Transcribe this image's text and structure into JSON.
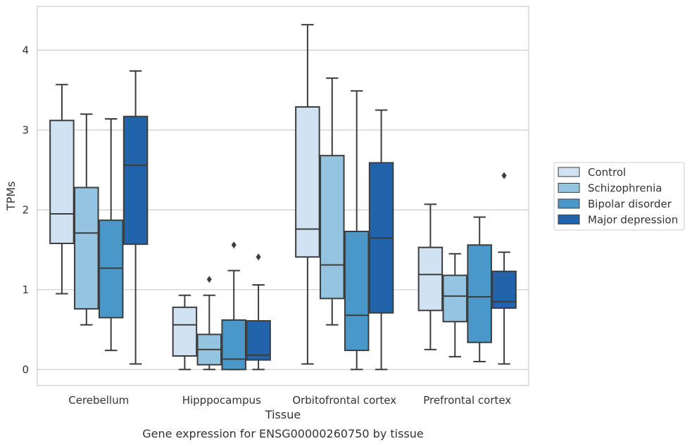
{
  "chart_data": {
    "type": "box",
    "xlabel": "Tissue",
    "ylabel": "TPMs",
    "caption": "Gene expression for ENSG00000260750 by tissue",
    "ylim": [
      -0.2,
      4.55
    ],
    "yticks": [
      0,
      1,
      2,
      3,
      4
    ],
    "grid": "horizontal",
    "legend_placement": "right",
    "categories": [
      "Cerebellum",
      "Hipppocampus",
      "Orbitofrontal cortex",
      "Prefrontal cortex"
    ],
    "series": [
      {
        "name": "Control",
        "color": "#d0e1f2",
        "boxes": [
          {
            "whislo": 0.95,
            "q1": 1.58,
            "med": 1.95,
            "q3": 3.12,
            "whishi": 3.57,
            "fliers": []
          },
          {
            "whislo": 0.0,
            "q1": 0.17,
            "med": 0.56,
            "q3": 0.78,
            "whishi": 0.93,
            "fliers": []
          },
          {
            "whislo": 0.07,
            "q1": 1.41,
            "med": 1.76,
            "q3": 3.29,
            "whishi": 4.32,
            "fliers": []
          },
          {
            "whislo": 0.25,
            "q1": 0.74,
            "med": 1.19,
            "q3": 1.53,
            "whishi": 2.07,
            "fliers": []
          }
        ]
      },
      {
        "name": "Schizophrenia",
        "color": "#94c4df",
        "boxes": [
          {
            "whislo": 0.56,
            "q1": 0.76,
            "med": 1.71,
            "q3": 2.28,
            "whishi": 3.2,
            "fliers": []
          },
          {
            "whislo": 0.0,
            "q1": 0.06,
            "med": 0.25,
            "q3": 0.44,
            "whishi": 0.93,
            "fliers": [
              1.13
            ]
          },
          {
            "whislo": 0.56,
            "q1": 0.89,
            "med": 1.31,
            "q3": 2.68,
            "whishi": 3.65,
            "fliers": []
          },
          {
            "whislo": 0.16,
            "q1": 0.6,
            "med": 0.92,
            "q3": 1.18,
            "whishi": 1.45,
            "fliers": []
          }
        ]
      },
      {
        "name": "Bipolar disorder",
        "color": "#4a98c9",
        "boxes": [
          {
            "whislo": 0.24,
            "q1": 0.65,
            "med": 1.27,
            "q3": 1.87,
            "whishi": 3.14,
            "fliers": []
          },
          {
            "whislo": 0.0,
            "q1": 0.0,
            "med": 0.13,
            "q3": 0.62,
            "whishi": 1.24,
            "fliers": [
              1.56
            ]
          },
          {
            "whislo": 0.0,
            "q1": 0.24,
            "med": 0.68,
            "q3": 1.73,
            "whishi": 3.49,
            "fliers": []
          },
          {
            "whislo": 0.1,
            "q1": 0.34,
            "med": 0.91,
            "q3": 1.56,
            "whishi": 1.91,
            "fliers": []
          }
        ]
      },
      {
        "name": "Major depression",
        "color": "#2164ab",
        "boxes": [
          {
            "whislo": 0.07,
            "q1": 1.57,
            "med": 2.56,
            "q3": 3.17,
            "whishi": 3.74,
            "fliers": []
          },
          {
            "whislo": 0.0,
            "q1": 0.12,
            "med": 0.18,
            "q3": 0.61,
            "whishi": 1.06,
            "fliers": [
              1.41
            ]
          },
          {
            "whislo": 0.0,
            "q1": 0.71,
            "med": 1.65,
            "q3": 2.59,
            "whishi": 3.25,
            "fliers": []
          },
          {
            "whislo": 0.07,
            "q1": 0.77,
            "med": 0.85,
            "q3": 1.23,
            "whishi": 1.47,
            "fliers": [
              2.43
            ]
          }
        ]
      }
    ]
  }
}
